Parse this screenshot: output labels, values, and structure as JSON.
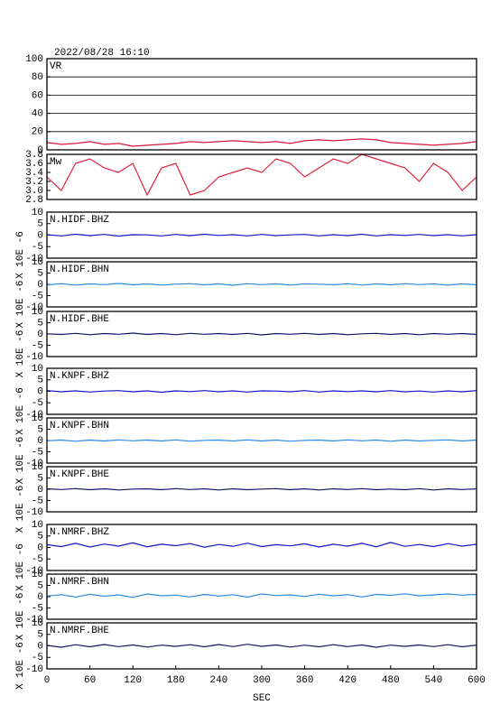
{
  "chart_data": {
    "type": "line",
    "title": "2022/08/28 16:10",
    "xlabel": "SEC",
    "xlim": [
      0,
      600
    ],
    "xticks": [
      0,
      60,
      120,
      180,
      240,
      300,
      360,
      420,
      480,
      540,
      600
    ],
    "x": [
      0,
      20,
      40,
      60,
      80,
      100,
      120,
      140,
      160,
      180,
      200,
      220,
      240,
      260,
      280,
      300,
      320,
      340,
      360,
      380,
      400,
      420,
      440,
      460,
      480,
      500,
      520,
      540,
      560,
      580,
      600
    ],
    "panels": [
      {
        "label": "VR",
        "ylim": [
          0,
          100
        ],
        "yticks": [
          0,
          20,
          40,
          60,
          80,
          100
        ],
        "grid": true,
        "color": "#dc143c",
        "values": [
          8,
          6,
          7,
          9,
          6,
          7,
          4,
          5,
          6,
          7,
          9,
          8,
          9,
          10,
          9,
          8,
          9,
          7,
          10,
          11,
          10,
          11,
          12,
          11,
          8,
          7,
          6,
          5,
          6,
          7,
          9
        ]
      },
      {
        "label": "Mw",
        "ylim": [
          2.8,
          3.8
        ],
        "yticks": [
          2.8,
          {
            "value": 3,
            "label": "3.0"
          },
          3.2,
          3.4,
          3.6,
          3.8
        ],
        "grid": false,
        "color": "#e0203e",
        "values": [
          3.3,
          3.0,
          3.6,
          3.7,
          3.5,
          3.4,
          3.6,
          2.9,
          3.5,
          3.6,
          2.9,
          3.0,
          3.3,
          3.4,
          3.5,
          3.4,
          3.7,
          3.6,
          3.3,
          3.5,
          3.7,
          3.6,
          3.8,
          3.7,
          3.6,
          3.5,
          3.2,
          3.6,
          3.4,
          3.0,
          3.3
        ]
      },
      {
        "label": "N.HIDF.BHZ",
        "ylabel": "X 10E -6",
        "ylim": [
          -10,
          10
        ],
        "yticks": [
          -10,
          -5,
          0,
          5,
          10
        ],
        "grid": false,
        "color": "#1414c8",
        "values": [
          0.2,
          -0.3,
          0.4,
          -0.2,
          0.3,
          -0.4,
          0.2,
          0.1,
          -0.3,
          0.3,
          -0.2,
          0.4,
          -0.1,
          0.2,
          -0.3,
          0.3,
          -0.2,
          0.1,
          0.3,
          -0.3,
          0.2,
          -0.2,
          0.4,
          -0.3,
          0.2,
          -0.1,
          0.3,
          -0.2,
          0.2,
          -0.3,
          0.2
        ]
      },
      {
        "label": "N.HIDF.BHN",
        "ylabel": "X 10E -6",
        "ylim": [
          -10,
          10
        ],
        "yticks": [
          -10,
          -5,
          0,
          5,
          10
        ],
        "grid": false,
        "color": "#2a8ae6",
        "values": [
          -0.2,
          0.3,
          -0.3,
          0.2,
          -0.1,
          0.4,
          -0.2,
          0.2,
          -0.3,
          0.1,
          0.3,
          -0.2,
          0.2,
          -0.4,
          0.3,
          -0.1,
          0.2,
          -0.3,
          0.2,
          0.1,
          -0.2,
          0.3,
          -0.3,
          0.2,
          -0.2,
          0.3,
          -0.1,
          0.2,
          -0.3,
          0.2,
          -0.2
        ]
      },
      {
        "label": "N.HIDF.BHE",
        "ylabel": "X 10E -6",
        "ylim": [
          -10,
          10
        ],
        "yticks": [
          -10,
          -5,
          0,
          5,
          10
        ],
        "grid": false,
        "color": "#141464",
        "values": [
          0.1,
          -0.2,
          0.3,
          -0.3,
          0.2,
          -0.1,
          0.4,
          -0.2,
          0.2,
          -0.3,
          0.3,
          -0.1,
          0.2,
          -0.2,
          0.3,
          -0.4,
          0.2,
          -0.1,
          0.3,
          -0.2,
          0.2,
          -0.3,
          0.1,
          0.3,
          -0.2,
          0.2,
          -0.3,
          0.2,
          -0.1,
          0.2,
          -0.2
        ]
      },
      {
        "label": "N.KNPF.BHZ",
        "ylabel": "X 10E -6",
        "ylim": [
          -10,
          10
        ],
        "yticks": [
          -10,
          -5,
          0,
          5,
          10
        ],
        "grid": false,
        "color": "#1414c8",
        "values": [
          0.3,
          -0.2,
          0.2,
          -0.3,
          0.1,
          0.3,
          -0.2,
          0.2,
          -0.4,
          0.2,
          -0.1,
          0.3,
          -0.2,
          0.2,
          -0.3,
          0.2,
          0.1,
          -0.2,
          0.3,
          -0.3,
          0.2,
          -0.1,
          0.2,
          -0.2,
          0.3,
          -0.2,
          0.1,
          -0.3,
          0.2,
          -0.2,
          0.3
        ]
      },
      {
        "label": "N.KNPF.BHN",
        "ylabel": "X 10E -6",
        "ylim": [
          -10,
          10
        ],
        "yticks": [
          -10,
          -5,
          0,
          5,
          10
        ],
        "grid": false,
        "color": "#2a8ae6",
        "values": [
          -0.1,
          0.2,
          -0.3,
          0.2,
          -0.2,
          0.3,
          -0.1,
          0.2,
          -0.2,
          0.3,
          -0.3,
          0.1,
          0.2,
          -0.2,
          0.3,
          -0.2,
          0.2,
          -0.3,
          0.1,
          0.2,
          -0.2,
          0.3,
          -0.1,
          0.2,
          -0.3,
          0.2,
          -0.2,
          0.1,
          0.3,
          -0.2,
          0.2
        ]
      },
      {
        "label": "N.KNPF.BHE",
        "ylabel": "X 10E -6",
        "ylim": [
          -10,
          10
        ],
        "yticks": [
          -10,
          -5,
          0,
          5,
          10
        ],
        "grid": false,
        "color": "#141464",
        "values": [
          0.2,
          -0.1,
          0.3,
          -0.2,
          0.2,
          -0.3,
          0.1,
          0.2,
          -0.2,
          0.3,
          -0.1,
          0.2,
          -0.3,
          0.2,
          -0.2,
          0.1,
          0.3,
          -0.2,
          0.2,
          -0.3,
          0.2,
          -0.1,
          0.3,
          -0.2,
          0.1,
          -0.2,
          0.3,
          -0.3,
          0.2,
          -0.1,
          0.2
        ]
      },
      {
        "label": "N.NMRF.BHZ",
        "ylabel": "X 10E -6",
        "ylim": [
          -10,
          10
        ],
        "yticks": [
          -10,
          -5,
          0,
          5,
          10
        ],
        "grid": false,
        "color": "#1414c8",
        "values": [
          1.2,
          0.4,
          1.8,
          0.2,
          1.5,
          0.6,
          2.0,
          0.3,
          1.4,
          0.8,
          1.7,
          0.1,
          1.3,
          0.5,
          1.9,
          0.4,
          1.2,
          0.7,
          1.6,
          0.2,
          1.4,
          0.6,
          1.8,
          0.3,
          2.2,
          0.5,
          1.3,
          0.4,
          1.7,
          0.6,
          1.4
        ]
      },
      {
        "label": "N.NMRF.BHN",
        "ylabel": "X 10E -6",
        "ylim": [
          -10,
          10
        ],
        "yticks": [
          -10,
          -5,
          0,
          5,
          10
        ],
        "grid": false,
        "color": "#2a8ae6",
        "values": [
          0.3,
          0.9,
          -0.2,
          1.1,
          0.2,
          0.8,
          -0.3,
          1.2,
          0.4,
          0.7,
          -0.1,
          1.0,
          0.3,
          0.9,
          -0.2,
          1.2,
          0.5,
          0.8,
          0.1,
          1.1,
          0.4,
          0.9,
          -0.1,
          1.0,
          0.6,
          1.3,
          0.4,
          0.8,
          1.2,
          0.7,
          1.0
        ]
      },
      {
        "label": "N.NMRF.BHE",
        "ylabel": "X 10E -6",
        "ylim": [
          -10,
          10
        ],
        "yticks": [
          -10,
          -5,
          0,
          5,
          10
        ],
        "grid": false,
        "color": "#141464",
        "values": [
          0.2,
          -0.6,
          0.5,
          -0.4,
          0.6,
          -0.3,
          0.4,
          -0.5,
          0.3,
          -0.2,
          0.5,
          -0.4,
          0.6,
          -0.3,
          0.7,
          -0.2,
          0.4,
          -0.5,
          0.3,
          -0.4,
          0.5,
          -0.3,
          0.4,
          -0.6,
          0.3,
          -0.2,
          0.4,
          -0.3,
          0.5,
          -0.4,
          0.3
        ]
      }
    ]
  }
}
